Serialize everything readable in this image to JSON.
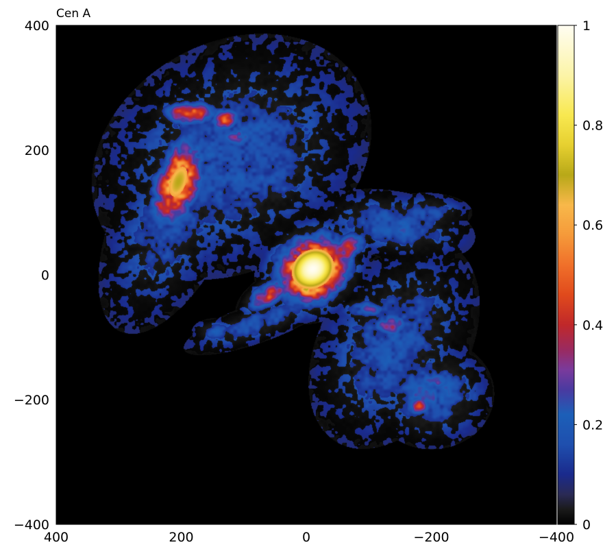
{
  "chart_data": {
    "type": "heatmap",
    "title": "Cen A",
    "xlabel": "",
    "ylabel": "",
    "xlim": [
      400,
      -400
    ],
    "ylim": [
      -400,
      400
    ],
    "x_ticks": [
      "400",
      "200",
      "0",
      "−200",
      "−400"
    ],
    "x_tick_values": [
      400,
      200,
      0,
      -200,
      -400
    ],
    "y_ticks": [
      "400",
      "200",
      "0",
      "−200",
      "−400"
    ],
    "y_tick_values": [
      400,
      200,
      0,
      -200,
      -400
    ],
    "colorbar": {
      "range": [
        0,
        1
      ],
      "ticks": [
        "1",
        "0.8",
        "0.6",
        "0.4",
        "0.2",
        "0"
      ],
      "tick_values": [
        1,
        0.8,
        0.6,
        0.4,
        0.2,
        0
      ],
      "colormap": [
        {
          "v": 0.0,
          "color": "#000000"
        },
        {
          "v": 0.03,
          "color": "#1a1a1a"
        },
        {
          "v": 0.06,
          "color": "#2a2a55"
        },
        {
          "v": 0.1,
          "color": "#1a2a8c"
        },
        {
          "v": 0.16,
          "color": "#1f4fae"
        },
        {
          "v": 0.22,
          "color": "#1c5fb8"
        },
        {
          "v": 0.27,
          "color": "#4a3aa0"
        },
        {
          "v": 0.31,
          "color": "#7a3a9c"
        },
        {
          "v": 0.35,
          "color": "#9a2a60"
        },
        {
          "v": 0.4,
          "color": "#c0282a"
        },
        {
          "v": 0.46,
          "color": "#e04a1c"
        },
        {
          "v": 0.52,
          "color": "#f0702a"
        },
        {
          "v": 0.58,
          "color": "#f59a3a"
        },
        {
          "v": 0.64,
          "color": "#f8b84a"
        },
        {
          "v": 0.7,
          "color": "#b8a818"
        },
        {
          "v": 0.76,
          "color": "#e6d030"
        },
        {
          "v": 0.82,
          "color": "#f8e850"
        },
        {
          "v": 0.9,
          "color": "#fcf4a8"
        },
        {
          "v": 1.0,
          "color": "#fffdf2"
        }
      ]
    },
    "features": [
      {
        "name": "core",
        "x": -10,
        "y": 10,
        "sx": 35,
        "sy": 30,
        "angle": -35,
        "peak": 1.0
      },
      {
        "name": "inner-jet-ne",
        "x": -60,
        "y": 40,
        "sx": 25,
        "sy": 12,
        "angle": -35,
        "peak": 0.5
      },
      {
        "name": "inner-jet-sw",
        "x": 60,
        "y": -30,
        "sx": 25,
        "sy": 12,
        "angle": -35,
        "peak": 0.45
      },
      {
        "name": "north-lobe-bright",
        "x": 205,
        "y": 150,
        "sx": 22,
        "sy": 45,
        "angle": 20,
        "peak": 0.7
      },
      {
        "name": "north-lobe-top",
        "x": 185,
        "y": 260,
        "sx": 28,
        "sy": 12,
        "angle": 0,
        "peak": 0.5
      },
      {
        "name": "north-lobe-spot",
        "x": 130,
        "y": 250,
        "sx": 15,
        "sy": 12,
        "angle": 0,
        "peak": 0.45
      },
      {
        "name": "north-lobe-mid",
        "x": 110,
        "y": 220,
        "sx": 15,
        "sy": 12,
        "angle": 0,
        "peak": 0.35
      },
      {
        "name": "north-lobe-diffuse",
        "x": 120,
        "y": 190,
        "sx": 110,
        "sy": 85,
        "angle": -30,
        "peak": 0.2
      },
      {
        "name": "north-lobe-left",
        "x": 210,
        "y": 100,
        "sx": 45,
        "sy": 100,
        "angle": 25,
        "peak": 0.18
      },
      {
        "name": "north-lobe-tail",
        "x": 60,
        "y": 150,
        "sx": 60,
        "sy": 35,
        "angle": -30,
        "peak": 0.17
      },
      {
        "name": "ne-filament",
        "x": -140,
        "y": 80,
        "sx": 60,
        "sy": 25,
        "angle": 10,
        "peak": 0.22
      },
      {
        "name": "ne-filament-tip",
        "x": -190,
        "y": 100,
        "sx": 35,
        "sy": 15,
        "angle": 0,
        "peak": 0.2
      },
      {
        "name": "south-lobe-spot",
        "x": -135,
        "y": -80,
        "sx": 18,
        "sy": 12,
        "angle": 0,
        "peak": 0.42
      },
      {
        "name": "south-lobe-spot2",
        "x": -95,
        "y": -55,
        "sx": 20,
        "sy": 10,
        "angle": 0,
        "peak": 0.3
      },
      {
        "name": "south-lobe-diffuse",
        "x": -140,
        "y": -110,
        "sx": 55,
        "sy": 85,
        "angle": 30,
        "peak": 0.2
      },
      {
        "name": "south-lobe-lower",
        "x": -200,
        "y": -190,
        "sx": 45,
        "sy": 40,
        "angle": 0,
        "peak": 0.24
      },
      {
        "name": "south-lobe-lower-spot",
        "x": -180,
        "y": -210,
        "sx": 14,
        "sy": 10,
        "angle": 0,
        "peak": 0.4
      },
      {
        "name": "south-lobe-lower-spot2",
        "x": -210,
        "y": -170,
        "sx": 12,
        "sy": 10,
        "angle": 0,
        "peak": 0.32
      },
      {
        "name": "sw-filament",
        "x": 75,
        "y": -75,
        "sx": 60,
        "sy": 15,
        "angle": -20,
        "peak": 0.2
      },
      {
        "name": "sw-filament-tip",
        "x": 145,
        "y": -90,
        "sx": 18,
        "sy": 10,
        "angle": 0,
        "peak": 0.2
      }
    ]
  }
}
